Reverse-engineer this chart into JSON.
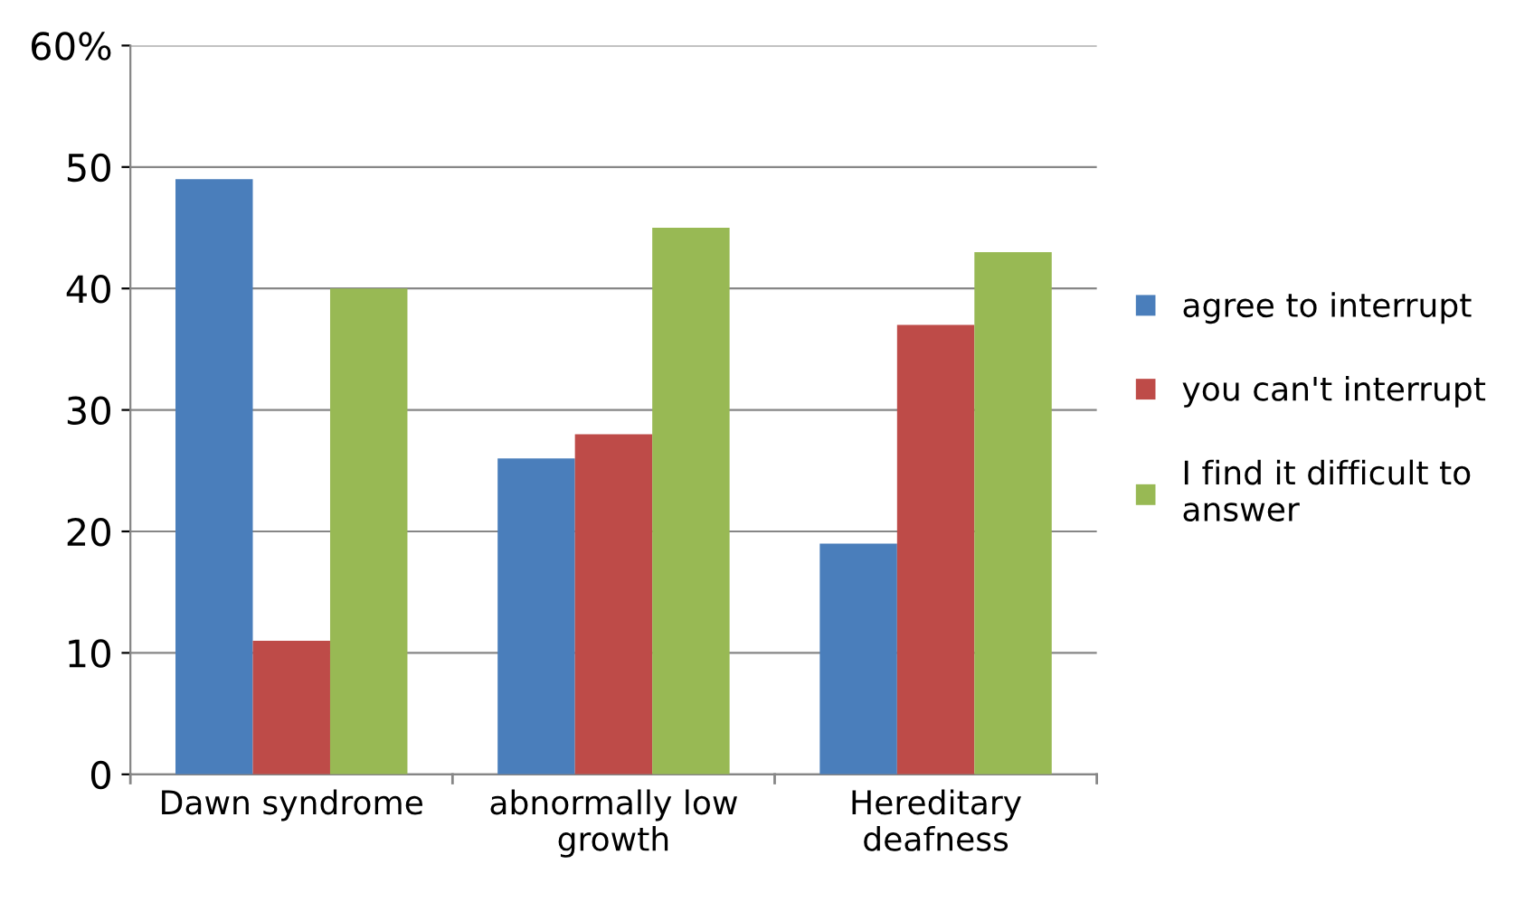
{
  "chart_data": {
    "type": "bar",
    "categories": [
      "Dawn syndrome",
      "abnormally low growth",
      "Hereditary deafness"
    ],
    "series": [
      {
        "name": "agree to interrupt",
        "color": "#4a7ebb",
        "values": [
          49,
          26,
          19
        ]
      },
      {
        "name": "you can't interrupt",
        "color": "#be4b48",
        "values": [
          11,
          28,
          37
        ]
      },
      {
        "name": "I find it difficult to answer",
        "color": "#98b954",
        "values": [
          40,
          45,
          43
        ]
      }
    ],
    "ylim": [
      0,
      60
    ],
    "yticks": [
      0,
      10,
      20,
      30,
      40,
      50,
      {
        "value": 60,
        "label": "60%"
      }
    ],
    "grid": "y",
    "legend": "right"
  }
}
